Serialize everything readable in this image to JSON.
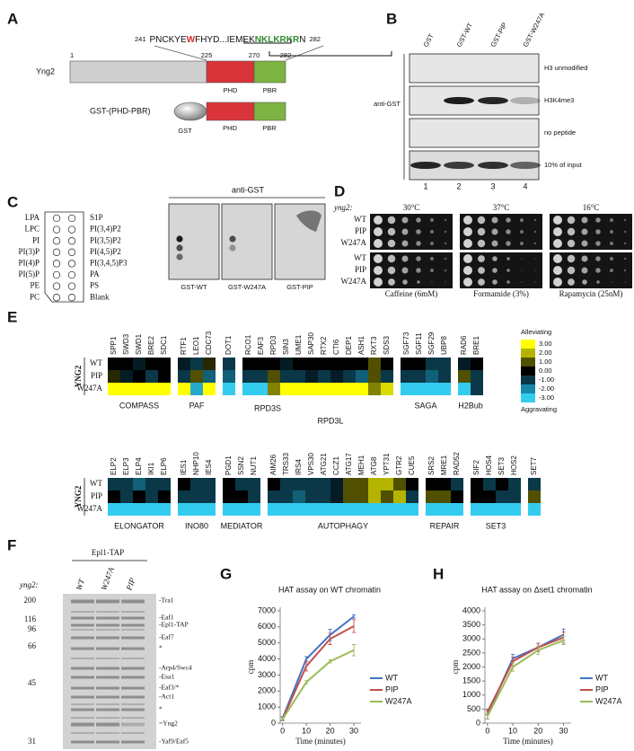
{
  "figure": {
    "A": {
      "label": "A",
      "sequence": {
        "start": 241,
        "parts": [
          {
            "text": "PNCKYE",
            "color": "#111111"
          },
          {
            "text": "W",
            "color": "#d62a2a"
          },
          {
            "text": "FHYD...IEMEK",
            "color": "#111111"
          },
          {
            "text": "NKLKRKR",
            "color": "#2e8b2e"
          },
          {
            "text": "N",
            "color": "#111111"
          }
        ],
        "end": 282
      },
      "protein": "Yng2",
      "positions": [
        1,
        225,
        270,
        282
      ],
      "domains": [
        "PHD",
        "PBR"
      ],
      "domain_colors": [
        "#d9343a",
        "#7cb342"
      ],
      "construct": "GST-(PHD-PBR)",
      "construct_parts": [
        "GST",
        "PHD",
        "PBR"
      ]
    },
    "B": {
      "label": "B",
      "lanes": [
        "GST",
        "GST-WT",
        "GST-PIP",
        "GST-W247A"
      ],
      "antibody": "anti-GST",
      "rows": [
        "H3 unmodified",
        "H3K4me3",
        "no peptide",
        "10% of input"
      ],
      "lane_numbers": [
        1,
        2,
        3,
        4
      ]
    },
    "C": {
      "label": "C",
      "antibody": "anti-GST",
      "lipids_left": [
        "LPA",
        "LPC",
        "PI",
        "PI(3)P",
        "PI(4)P",
        "PI(5)P",
        "PE",
        "PC"
      ],
      "lipids_right": [
        "S1P",
        "PI(3,4)P2",
        "PI(3,5)P2",
        "PI(4,5)P2",
        "PI(3,4,5)P3",
        "PA",
        "PS",
        "Blank"
      ],
      "blots": [
        "GST-WT",
        "GST-W247A",
        "GST-PIP"
      ]
    },
    "D": {
      "label": "D",
      "gene": "yng2:",
      "temperatures": [
        "30°C",
        "37°C",
        "16°C"
      ],
      "strains": [
        "WT",
        "PIP",
        "W247A"
      ],
      "conditions": [
        "Caffeine (6mM)",
        "Formamide (3%)",
        "Rapamycin (25nM)"
      ]
    },
    "E": {
      "label": "E",
      "gene": "YNG2",
      "rows": [
        "WT",
        "PIP",
        "W247A"
      ],
      "legend": {
        "top": "Alleviating",
        "bottom": "Aggravating",
        "ticks": [
          {
            "value": 3,
            "label": "3.00"
          },
          {
            "value": 2,
            "label": "2.00"
          },
          {
            "value": 1,
            "label": "1.00"
          },
          {
            "value": 0,
            "label": "0.00"
          },
          {
            "value": -1,
            "label": "-1.00"
          },
          {
            "value": -2,
            "label": "-2.00"
          },
          {
            "value": -3,
            "label": "-3.00"
          }
        ],
        "colors": [
          "#ffff00",
          "#b4b400",
          "#505000",
          "#000000",
          "#0a3848",
          "#1888a8",
          "#33ccee"
        ]
      },
      "top": [
        {
          "label": "COMPASS",
          "genes": [
            "SPP1",
            "SWD3",
            "SWD1",
            "BRE2",
            "SDC1"
          ],
          "values": [
            [
              0,
              0,
              -0.5,
              0,
              0
            ],
            [
              0.5,
              -0.5,
              0,
              -1,
              0
            ],
            [
              3,
              3,
              3,
              3,
              3
            ]
          ]
        },
        {
          "label": "PAF",
          "genes": [
            "RTF1",
            "LEO1",
            "CDC73"
          ],
          "values": [
            [
              -0.5,
              -1,
              0.5
            ],
            [
              -1,
              1,
              -1.5
            ],
            [
              3,
              -2.5,
              3
            ]
          ]
        },
        {
          "genes": [
            "DOT1"
          ],
          "values": [
            [
              -1
            ],
            [
              -1.5
            ],
            [
              -3
            ]
          ]
        },
        {
          "labels": [
            "RPD3S",
            "RPD3L"
          ],
          "genes": [
            "RCO1",
            "EAF3",
            "RPD3",
            "SIN3",
            "UME1",
            "SAP30",
            "RTX2",
            "CTI6",
            "DEP1",
            "ASH1",
            "RXT3",
            "SDS3"
          ],
          "values": [
            [
              0,
              0,
              0,
              -0.5,
              0,
              0,
              0,
              0,
              0,
              0,
              1,
              0
            ],
            [
              -1,
              -1,
              1,
              -1,
              -1,
              -0.5,
              -1,
              -0.5,
              -1,
              -1.5,
              1,
              -1
            ],
            [
              -3,
              -3,
              1.5,
              3,
              3,
              3,
              3,
              3,
              3,
              3,
              1.5,
              2.5
            ]
          ]
        },
        {
          "label": "SAGA",
          "genes": [
            "SGF73",
            "SGF11",
            "SGF29",
            "UBP8"
          ],
          "values": [
            [
              0,
              0,
              -1,
              -1
            ],
            [
              -1,
              -1,
              -1.5,
              -1
            ],
            [
              -3,
              -3,
              -3,
              -3
            ]
          ]
        },
        {
          "label": "H2Bub",
          "genes": [
            "RAD6",
            "BRE1"
          ],
          "values": [
            [
              -0.5,
              0
            ],
            [
              1,
              -1
            ],
            [
              -3,
              -1
            ]
          ]
        }
      ],
      "bottom": [
        {
          "label": "ELONGATOR",
          "genes": [
            "ELP2",
            "ELP3",
            "ELP4",
            "IKI1",
            "ELP6"
          ],
          "values": [
            [
              -1,
              -1,
              -1.5,
              -1,
              -1
            ],
            [
              0,
              -1,
              0,
              -1,
              0
            ],
            [
              -3,
              -3,
              -3,
              -3,
              -3
            ]
          ]
        },
        {
          "label": "INO80",
          "genes": [
            "IES1",
            "NHP10",
            "IES4"
          ],
          "values": [
            [
              0,
              -1,
              -1
            ],
            [
              -1,
              -1,
              -1
            ],
            [
              -3,
              -3,
              -3
            ]
          ]
        },
        {
          "label": "MEDIATOR",
          "genes": [
            "PGD1",
            "SSN2",
            "NUT1"
          ],
          "values": [
            [
              0,
              -1,
              -1
            ],
            [
              0,
              0,
              -1
            ],
            [
              -3,
              -3,
              -3
            ]
          ]
        },
        {
          "label": "AUTOPHAGY",
          "genes": [
            "AIM26",
            "TRS33",
            "IRS4",
            "VPS30",
            "ATG21",
            "CCZ1",
            "ATG17",
            "MEH1",
            "ATG8",
            "YPT31",
            "GTR2",
            "CUE5"
          ],
          "values": [
            [
              0,
              -1,
              -1,
              -1,
              -1,
              -0.5,
              1,
              1,
              2,
              2,
              1,
              0
            ],
            [
              -1,
              -1,
              -1.5,
              -1,
              -1,
              -0.5,
              1,
              1,
              2,
              1,
              2,
              -1
            ],
            [
              -3,
              -3,
              -3,
              -3,
              -3,
              -3,
              -3,
              -3,
              -3,
              -3,
              -3,
              -3
            ]
          ]
        },
        {
          "label": "REPAIR",
          "genes": [
            "SRS2",
            "MRE1",
            "RAD52"
          ],
          "values": [
            [
              0,
              0,
              -1
            ],
            [
              1,
              1,
              0
            ],
            [
              -3,
              -3,
              -3
            ]
          ]
        },
        {
          "label": "SET3",
          "genes": [
            "SIF2",
            "HOS4",
            "SET3",
            "HOS2"
          ],
          "values": [
            [
              0,
              -1,
              0,
              -1
            ],
            [
              0,
              0,
              -1,
              -1
            ],
            [
              -3,
              -3,
              -3,
              -3
            ]
          ]
        },
        {
          "genes": [
            "SET7"
          ],
          "values": [
            [
              -1
            ],
            [
              1
            ],
            [
              -3
            ]
          ]
        }
      ]
    },
    "F": {
      "label": "F",
      "construct": "Epl1-TAP",
      "gene": "yng2:",
      "lanes": [
        "WT",
        "W247A",
        "PIP"
      ],
      "markers": [
        200,
        116,
        96,
        66,
        45,
        31
      ],
      "bands": [
        "-Tra1",
        "-Eaf1",
        "-Epl1-TAP",
        "-Eaf7",
        "*",
        "-Arp4/Swc4",
        "-Esa1",
        "-Eaf3/*",
        "-Act1",
        "*",
        "=Yng2",
        "-Yaf9/Eaf5"
      ]
    }
  },
  "chart_data": [
    {
      "type": "line",
      "label": "G",
      "title": "HAT assay on WT chromatin",
      "x_label": "Time (minutes)",
      "y_label": "cpm",
      "x": [
        0,
        10,
        20,
        30
      ],
      "xlim": [
        -1,
        33
      ],
      "xticks": [
        0,
        10,
        20,
        30
      ],
      "ylim": [
        0,
        7000
      ],
      "yticks": [
        0,
        1000,
        2000,
        3000,
        4000,
        5000,
        6000,
        7000
      ],
      "legend": "right",
      "series": [
        {
          "name": "WT",
          "color": "#4472c4",
          "values": [
            300,
            4000,
            5500,
            6650
          ],
          "errors": [
            100,
            150,
            350,
            100
          ]
        },
        {
          "name": "PIP",
          "color": "#c0504d",
          "values": [
            250,
            3550,
            5250,
            6050
          ],
          "errors": [
            100,
            300,
            350,
            400
          ]
        },
        {
          "name": "W247A",
          "color": "#9bbb59",
          "values": [
            250,
            2550,
            3850,
            4550
          ],
          "errors": [
            100,
            100,
            100,
            350
          ]
        }
      ]
    },
    {
      "type": "line",
      "label": "H",
      "title": "HAT assay on Δset1 chromatin",
      "x_label": "Time (minutes)",
      "y_label": "cpm",
      "x": [
        0,
        10,
        20,
        30
      ],
      "xlim": [
        -1,
        33
      ],
      "xticks": [
        0,
        10,
        20,
        30
      ],
      "ylim": [
        0,
        4000
      ],
      "yticks": [
        0,
        500,
        1000,
        1500,
        2000,
        2500,
        3000,
        3500,
        4000
      ],
      "legend": "right",
      "series": [
        {
          "name": "WT",
          "color": "#4472c4",
          "values": [
            300,
            2300,
            2700,
            3150
          ],
          "errors": [
            150,
            150,
            150,
            200
          ]
        },
        {
          "name": "PIP",
          "color": "#c0504d",
          "values": [
            400,
            2200,
            2700,
            3050
          ],
          "errors": [
            100,
            150,
            150,
            200
          ]
        },
        {
          "name": "W247A",
          "color": "#9bbb59",
          "values": [
            250,
            2000,
            2600,
            2950
          ],
          "errors": [
            100,
            150,
            150,
            150
          ]
        }
      ]
    }
  ]
}
